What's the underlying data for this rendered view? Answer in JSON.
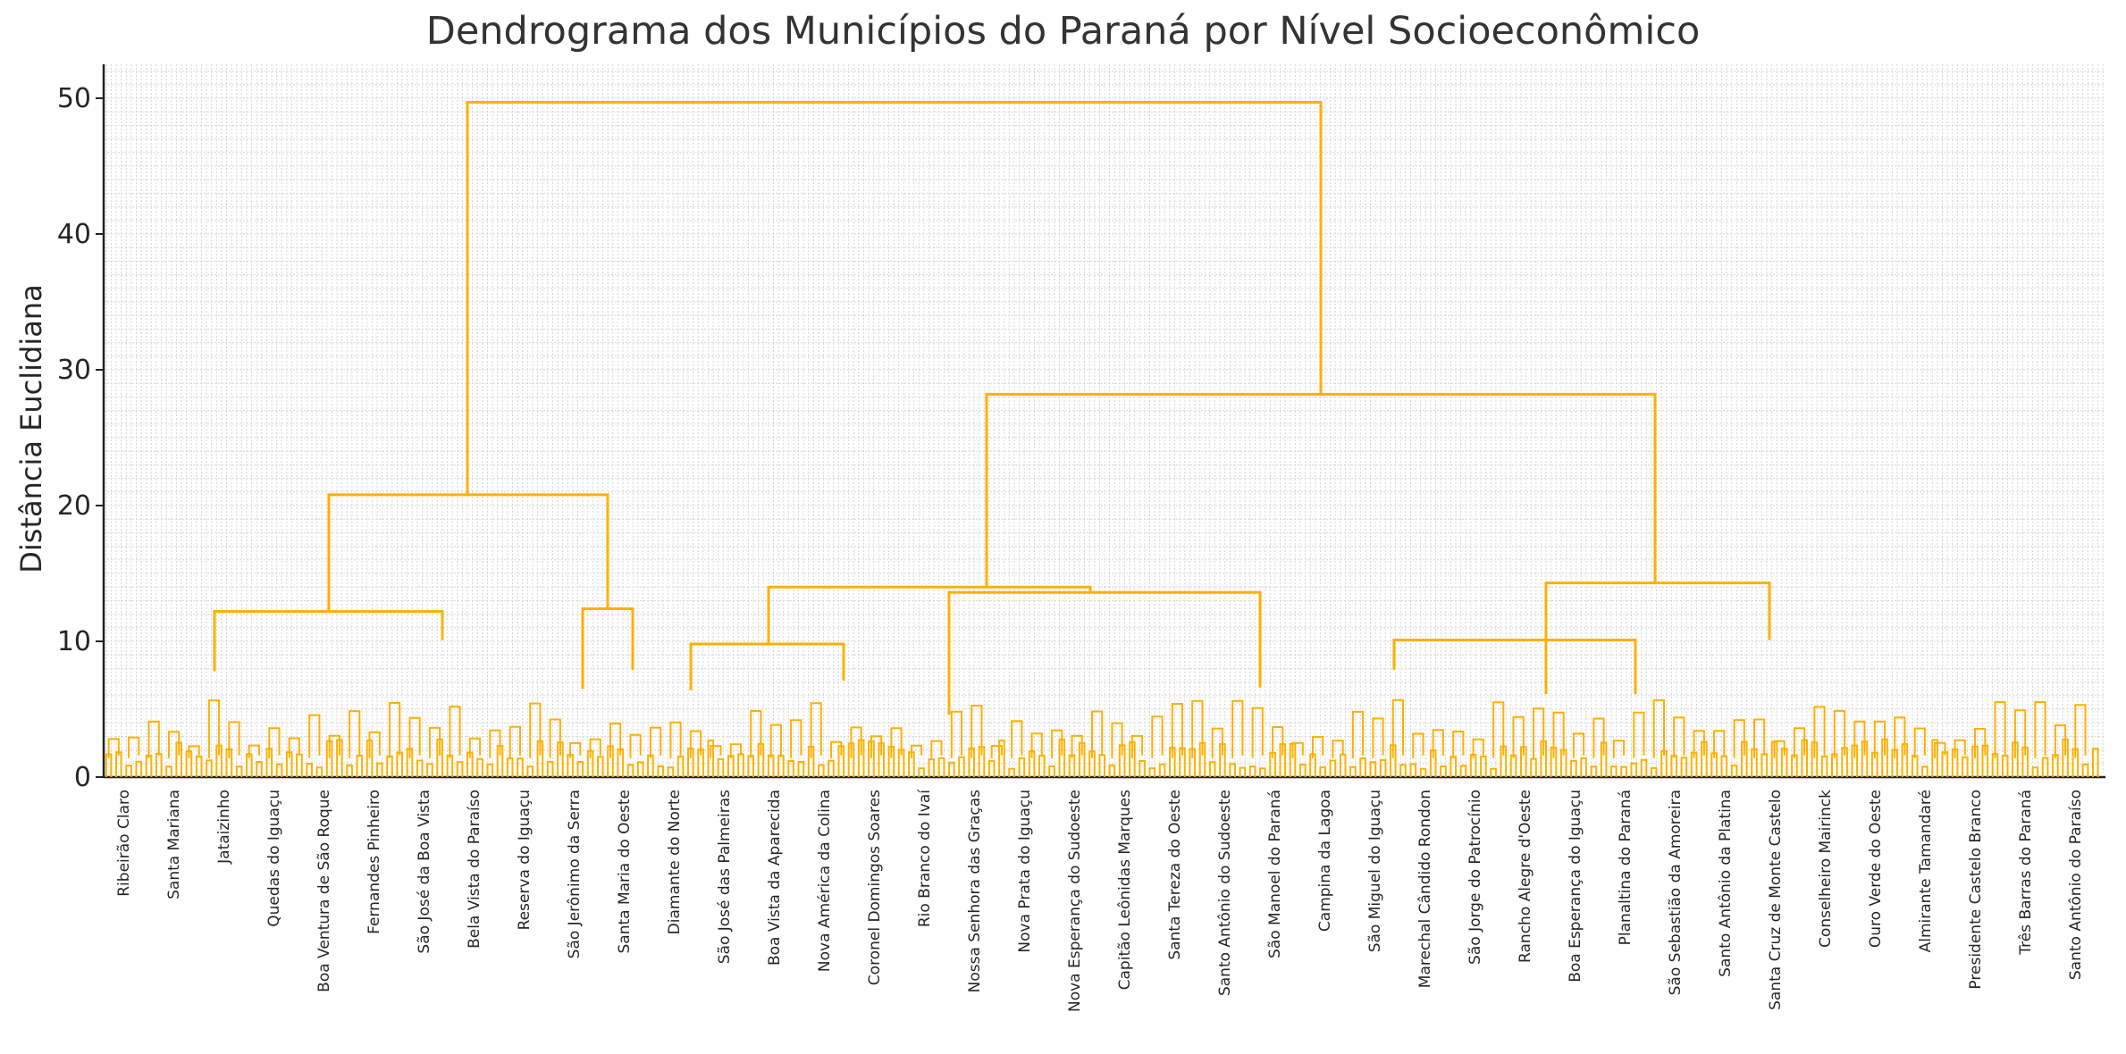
{
  "chart_data": {
    "type": "dendrogram",
    "title": "Dendrograma dos Municípios do Paraná por Nível Socioeconômico",
    "xlabel": "",
    "ylabel": "Distância Euclidiana",
    "ylim": [
      0,
      52
    ],
    "yticks": [
      0,
      10,
      20,
      30,
      40,
      50
    ],
    "grid": true,
    "line_color": "#FFB000",
    "leaf_count": 399,
    "readable_leaf_labels": [
      "Ribeirão Claro",
      "Santa Mariana",
      "Jataizinho",
      "Quedas do Iguaçu",
      "Boa Ventura de São Roque",
      "Fernandes Pinheiro",
      "São José da Boa Vista",
      "Bela Vista do Paraíso",
      "Reserva do Iguaçu",
      "São Jerônimo da Serra",
      "Santa Maria do Oeste",
      "Diamante do Norte",
      "São José das Palmeiras",
      "Boa Vista da Aparecida",
      "Nova América da Colina",
      "Coronel Domingos Soares",
      "Rio Branco do Ivaí",
      "Nossa Senhora das Graças",
      "Nova Prata do Iguaçu",
      "Nova Esperança do Sudoeste",
      "Capitão Leônidas Marques",
      "Santa Tereza do Oeste",
      "Santo Antônio do Sudoeste",
      "São Manoel do Paraná",
      "Campina da Lagoa",
      "São Miguel do Iguaçu",
      "Marechal Cândido Rondon",
      "São Jorge do Patrocínio",
      "Rancho Alegre d'Oeste",
      "Boa Esperança do Iguaçu",
      "Planaltina do Paraná",
      "São Sebastião da Amoreira",
      "Santo Antônio da Platina",
      "Santa Cruz de Monte Castelo",
      "Conselheiro Mairinck",
      "Ouro Verde do Oeste",
      "Almirante Tamandaré",
      "Presidente Castelo Branco",
      "Três Barras do Paraná",
      "Santo Antônio do Paraíso"
    ],
    "top_merges": [
      {
        "height": 49.7
      },
      {
        "height": 28.2
      },
      {
        "height": 20.8
      },
      {
        "height": 14.3
      },
      {
        "height": 13.9
      },
      {
        "height": 13.6
      },
      {
        "height": 12.4
      },
      {
        "height": 12.2
      },
      {
        "height": 10.1
      },
      {
        "height": 10.1
      },
      {
        "height": 9.8
      }
    ]
  }
}
